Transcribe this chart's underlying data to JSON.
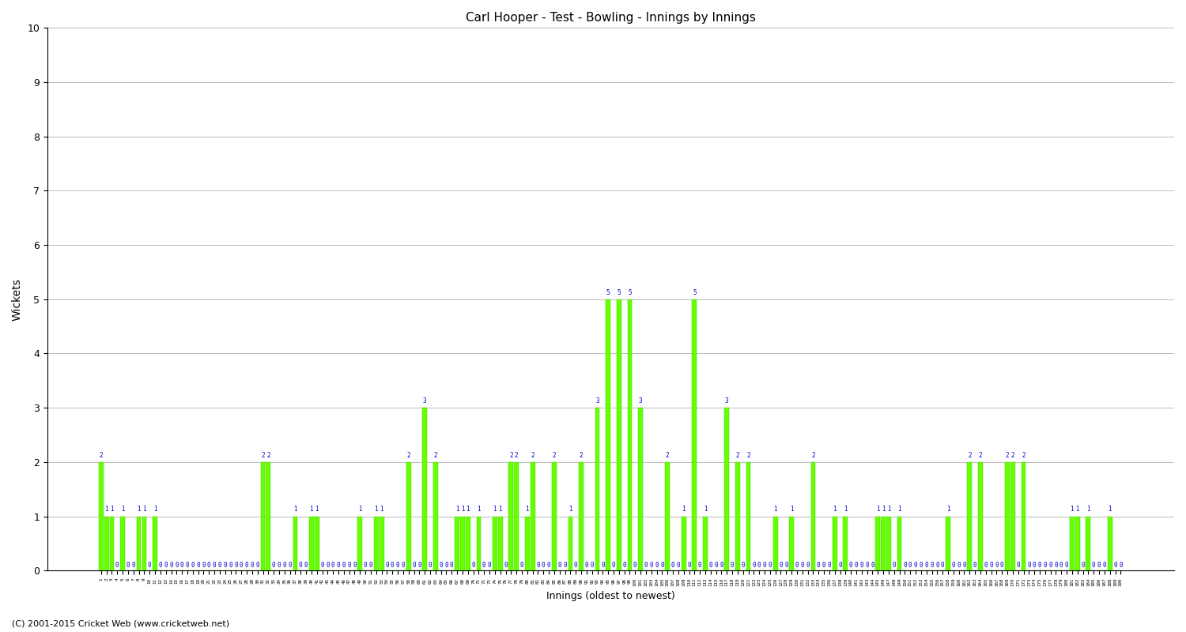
{
  "title": "Carl Hooper - Test - Bowling - Innings by Innings",
  "ylabel": "Wickets",
  "xlabel": "Innings (oldest to newest)",
  "ylim": [
    0,
    10
  ],
  "yticks": [
    0,
    1,
    2,
    3,
    4,
    5,
    6,
    7,
    8,
    9,
    10
  ],
  "bar_color": "#66ff00",
  "bar_edge_color": "#44cc00",
  "label_color": "#0000cc",
  "background_color": "#ffffff",
  "grid_color": "#bbbbbb",
  "footer": "(C) 2001-2015 Cricket Web (www.cricketweb.net)",
  "wickets": [
    2,
    1,
    1,
    0,
    1,
    0,
    0,
    1,
    1,
    0,
    1,
    0,
    0,
    0,
    0,
    0,
    0,
    0,
    0,
    0,
    0,
    0,
    0,
    0,
    0,
    0,
    0,
    0,
    0,
    0,
    2,
    2,
    0,
    0,
    0,
    0,
    1,
    0,
    0,
    1,
    1,
    0,
    0,
    0,
    0,
    0,
    0,
    0,
    1,
    0,
    0,
    1,
    1,
    0,
    0,
    0,
    0,
    2,
    0,
    0,
    3,
    0,
    2,
    0,
    0,
    0,
    1,
    1,
    1,
    0,
    1,
    0,
    0,
    1,
    1,
    0,
    2,
    2,
    0,
    1,
    2,
    0,
    0,
    0,
    2,
    0,
    0,
    1,
    0,
    2,
    0,
    0,
    3,
    0,
    5,
    0,
    5,
    0,
    5,
    0,
    3,
    0,
    0,
    0,
    0,
    2,
    0,
    0,
    1,
    0,
    5,
    0,
    1,
    0,
    0,
    0,
    3,
    0,
    2,
    0,
    2,
    0,
    0,
    0,
    0,
    1,
    0,
    0,
    1,
    0,
    0,
    0,
    2,
    0,
    0,
    0,
    1,
    0,
    1,
    0,
    0,
    0,
    0,
    0,
    1,
    1,
    1,
    0,
    1,
    0,
    0,
    0,
    0,
    0,
    0,
    0,
    0,
    1,
    0,
    0,
    0,
    2,
    0,
    2,
    0,
    0,
    0,
    0,
    2,
    2,
    0,
    2,
    0,
    0,
    0,
    0,
    0,
    0,
    0,
    0,
    1,
    1,
    0,
    1,
    0,
    0,
    0,
    1,
    0,
    0
  ]
}
